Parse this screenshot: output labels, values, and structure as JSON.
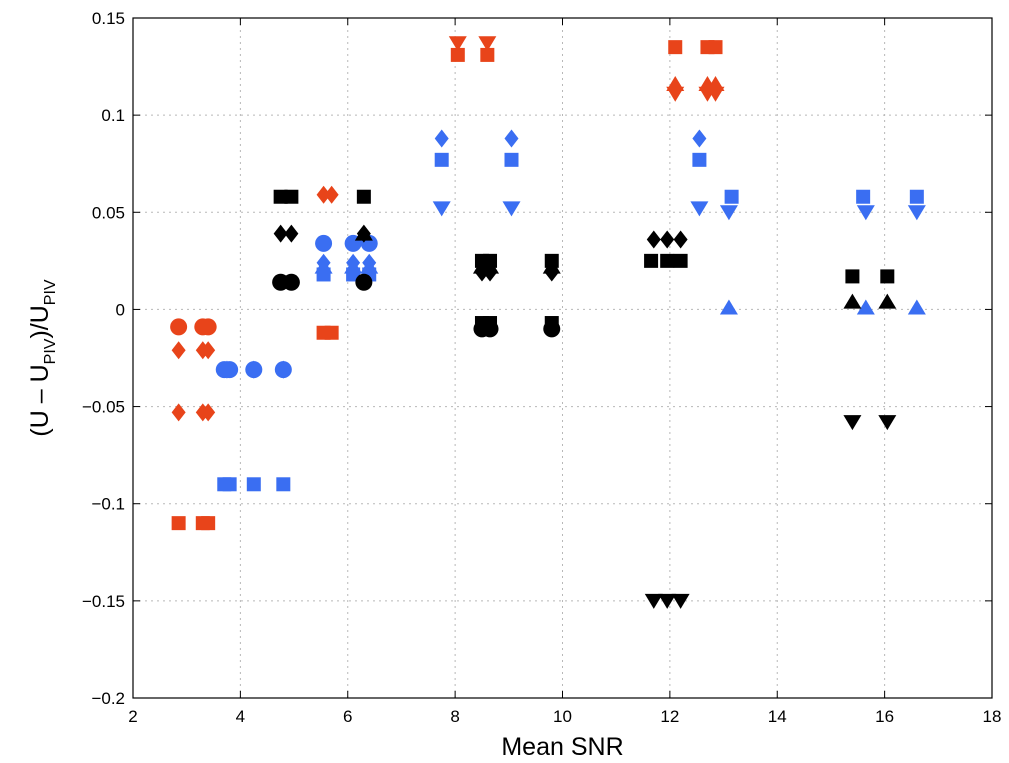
{
  "chart_data": {
    "type": "scatter",
    "xlabel": "Mean SNR",
    "ylabel": {
      "parts": [
        "(U – U",
        "PIV",
        ")/U",
        "PIV"
      ]
    },
    "xlim": [
      2,
      18
    ],
    "ylim": [
      -0.2,
      0.15
    ],
    "xticks": [
      2,
      4,
      6,
      8,
      10,
      12,
      14,
      16,
      18
    ],
    "yticks": [
      -0.2,
      -0.15,
      -0.1,
      -0.05,
      0,
      0.05,
      0.1,
      0.15
    ],
    "xtick_labels": [
      "2",
      "4",
      "6",
      "8",
      "10",
      "12",
      "14",
      "16",
      "18"
    ],
    "ytick_labels": [
      "−0.2",
      "−0.15",
      "−0.1",
      "−0.05",
      "0",
      "0.05",
      "0.1",
      "0.15"
    ],
    "grid": true,
    "colors": {
      "orange": "#e8441a",
      "blue": "#3a6ef2",
      "black": "#000000"
    },
    "series": [
      {
        "color": "orange",
        "marker": "circle",
        "points": [
          [
            2.85,
            -0.009
          ],
          [
            3.3,
            -0.009
          ],
          [
            3.4,
            -0.009
          ]
        ]
      },
      {
        "color": "orange",
        "marker": "diamond",
        "points": [
          [
            2.85,
            -0.021
          ],
          [
            3.3,
            -0.021
          ],
          [
            3.4,
            -0.021
          ],
          [
            2.85,
            -0.053
          ],
          [
            3.3,
            -0.053
          ],
          [
            3.4,
            -0.053
          ],
          [
            5.55,
            0.059
          ],
          [
            5.7,
            0.059
          ]
        ]
      },
      {
        "color": "orange",
        "marker": "square",
        "points": [
          [
            2.85,
            -0.11
          ],
          [
            3.3,
            -0.11
          ],
          [
            3.4,
            -0.11
          ],
          [
            5.55,
            -0.012
          ],
          [
            5.7,
            -0.012
          ],
          [
            8.05,
            0.131
          ],
          [
            8.6,
            0.131
          ],
          [
            12.1,
            0.135
          ],
          [
            12.7,
            0.135
          ],
          [
            12.85,
            0.135
          ]
        ]
      },
      {
        "color": "orange",
        "marker": "triangle-down",
        "points": [
          [
            8.05,
            0.137
          ],
          [
            8.6,
            0.137
          ],
          [
            12.1,
            0.111
          ],
          [
            12.7,
            0.111
          ],
          [
            12.85,
            0.111
          ]
        ]
      },
      {
        "color": "orange",
        "marker": "triangle-up",
        "points": [
          [
            12.1,
            0.116
          ],
          [
            12.7,
            0.116
          ],
          [
            12.85,
            0.116
          ]
        ]
      },
      {
        "color": "blue",
        "marker": "circle",
        "points": [
          [
            3.7,
            -0.031
          ],
          [
            3.8,
            -0.031
          ],
          [
            4.25,
            -0.031
          ],
          [
            4.8,
            -0.031
          ],
          [
            5.55,
            0.034
          ],
          [
            6.1,
            0.034
          ],
          [
            6.4,
            0.034
          ]
        ]
      },
      {
        "color": "blue",
        "marker": "diamond",
        "points": [
          [
            3.75,
            -0.031
          ],
          [
            4.25,
            -0.031
          ],
          [
            4.8,
            -0.031
          ],
          [
            5.55,
            0.024
          ],
          [
            6.1,
            0.024
          ],
          [
            6.4,
            0.024
          ],
          [
            7.75,
            0.088
          ],
          [
            9.05,
            0.088
          ],
          [
            12.55,
            0.088
          ]
        ]
      },
      {
        "color": "blue",
        "marker": "square",
        "points": [
          [
            3.7,
            -0.09
          ],
          [
            3.8,
            -0.09
          ],
          [
            4.25,
            -0.09
          ],
          [
            4.8,
            -0.09
          ],
          [
            5.55,
            0.018
          ],
          [
            6.1,
            0.018
          ],
          [
            6.4,
            0.018
          ],
          [
            7.75,
            0.077
          ],
          [
            9.05,
            0.077
          ],
          [
            12.55,
            0.077
          ],
          [
            13.15,
            0.058
          ],
          [
            15.6,
            0.058
          ],
          [
            16.6,
            0.058
          ]
        ]
      },
      {
        "color": "blue",
        "marker": "triangle-up",
        "points": [
          [
            5.55,
            0.022
          ],
          [
            6.1,
            0.022
          ],
          [
            6.4,
            0.022
          ],
          [
            13.1,
            0.001
          ],
          [
            15.65,
            0.001
          ],
          [
            16.6,
            0.001
          ]
        ]
      },
      {
        "color": "blue",
        "marker": "triangle-down",
        "points": [
          [
            7.75,
            0.052
          ],
          [
            9.05,
            0.052
          ],
          [
            12.55,
            0.052
          ],
          [
            13.1,
            0.05
          ],
          [
            15.65,
            0.05
          ],
          [
            16.6,
            0.05
          ]
        ]
      },
      {
        "color": "black",
        "marker": "circle",
        "points": [
          [
            4.75,
            0.014
          ],
          [
            4.95,
            0.014
          ],
          [
            6.3,
            0.014
          ],
          [
            8.5,
            -0.01
          ],
          [
            8.65,
            -0.01
          ],
          [
            9.8,
            -0.01
          ]
        ]
      },
      {
        "color": "black",
        "marker": "diamond",
        "points": [
          [
            4.75,
            0.039
          ],
          [
            4.95,
            0.039
          ],
          [
            6.3,
            0.039
          ],
          [
            8.5,
            0.019
          ],
          [
            8.65,
            0.019
          ],
          [
            9.8,
            0.019
          ],
          [
            11.7,
            0.036
          ],
          [
            11.95,
            0.036
          ],
          [
            12.2,
            0.036
          ]
        ]
      },
      {
        "color": "black",
        "marker": "square",
        "points": [
          [
            4.75,
            0.058
          ],
          [
            4.95,
            0.058
          ],
          [
            6.3,
            0.058
          ],
          [
            8.5,
            0.025
          ],
          [
            8.65,
            0.025
          ],
          [
            9.8,
            0.025
          ],
          [
            8.5,
            -0.007
          ],
          [
            8.65,
            -0.007
          ],
          [
            9.8,
            -0.007
          ],
          [
            11.65,
            0.025
          ],
          [
            11.95,
            0.025
          ],
          [
            12.2,
            0.025
          ],
          [
            15.4,
            0.017
          ],
          [
            16.05,
            0.017
          ]
        ]
      },
      {
        "color": "black",
        "marker": "triangle-up",
        "points": [
          [
            6.3,
            0.039
          ],
          [
            8.5,
            0.022
          ],
          [
            8.65,
            0.022
          ],
          [
            9.8,
            0.022
          ],
          [
            15.4,
            0.004
          ],
          [
            16.05,
            0.004
          ]
        ]
      },
      {
        "color": "black",
        "marker": "triangle-down",
        "points": [
          [
            11.7,
            -0.15
          ],
          [
            11.95,
            -0.15
          ],
          [
            12.2,
            -0.15
          ],
          [
            15.4,
            -0.058
          ],
          [
            16.05,
            -0.058
          ]
        ]
      }
    ]
  }
}
